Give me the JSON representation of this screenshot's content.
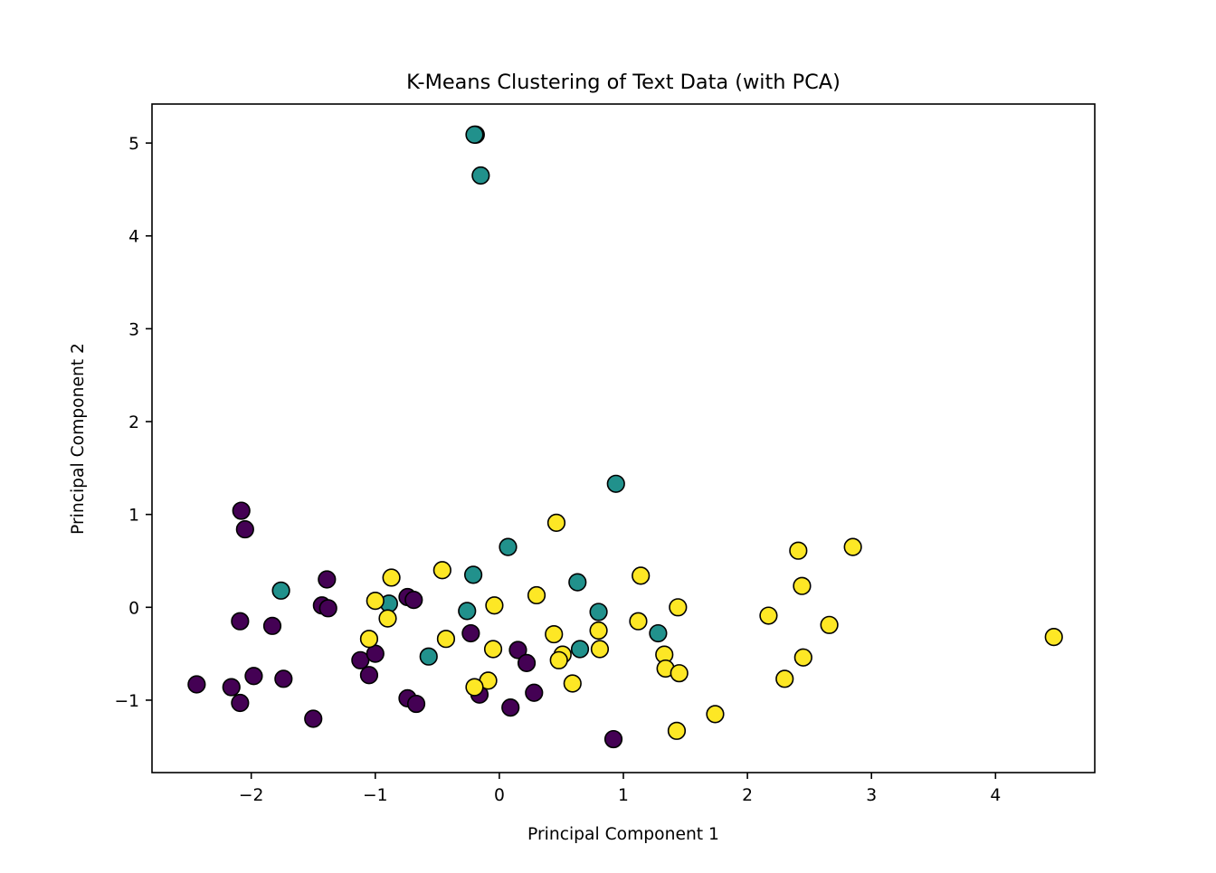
{
  "chart_data": {
    "type": "scatter",
    "title": "K-Means Clustering of Text Data (with PCA)",
    "xlabel": "Principal Component 1",
    "ylabel": "Principal Component 2",
    "xlim": [
      -2.8,
      4.8
    ],
    "ylim": [
      -1.78,
      5.42
    ],
    "xticks": [
      {
        "value": -2,
        "label": "−2"
      },
      {
        "value": -1,
        "label": "−1"
      },
      {
        "value": 0,
        "label": "0"
      },
      {
        "value": 1,
        "label": "1"
      },
      {
        "value": 2,
        "label": "2"
      },
      {
        "value": 3,
        "label": "3"
      },
      {
        "value": 4,
        "label": "4"
      }
    ],
    "yticks": [
      {
        "value": -1,
        "label": "−1"
      },
      {
        "value": 0,
        "label": "0"
      },
      {
        "value": 1,
        "label": "1"
      },
      {
        "value": 2,
        "label": "2"
      },
      {
        "value": 3,
        "label": "3"
      },
      {
        "value": 4,
        "label": "4"
      },
      {
        "value": 5,
        "label": "5"
      }
    ],
    "grid": false,
    "marker_edge_color": "#000000",
    "series": [
      {
        "color": "#440154",
        "points": [
          [
            -2.08,
            1.04
          ],
          [
            -2.05,
            0.84
          ],
          [
            -2.09,
            -0.15
          ],
          [
            -1.83,
            -0.2
          ],
          [
            -1.39,
            0.3
          ],
          [
            -1.43,
            0.02
          ],
          [
            -1.38,
            -0.01
          ],
          [
            -2.44,
            -0.83
          ],
          [
            -2.16,
            -0.86
          ],
          [
            -1.98,
            -0.74
          ],
          [
            -1.74,
            -0.77
          ],
          [
            -2.09,
            -1.03
          ],
          [
            -1.5,
            -1.2
          ],
          [
            -1.12,
            -0.57
          ],
          [
            -1.0,
            -0.5
          ],
          [
            -1.05,
            -0.73
          ],
          [
            -0.74,
            0.11
          ],
          [
            -0.69,
            0.08
          ],
          [
            -0.74,
            -0.98
          ],
          [
            -0.67,
            -1.04
          ],
          [
            -0.23,
            -0.28
          ],
          [
            0.15,
            -0.46
          ],
          [
            0.22,
            -0.6
          ],
          [
            -0.16,
            -0.94
          ],
          [
            0.28,
            -0.92
          ],
          [
            0.09,
            -1.08
          ],
          [
            0.92,
            -1.42
          ]
        ]
      },
      {
        "color": "#21918c",
        "points": [
          [
            -0.19,
            5.09
          ],
          [
            -0.2,
            5.09
          ],
          [
            -0.15,
            4.65
          ],
          [
            0.94,
            1.33
          ],
          [
            0.07,
            0.65
          ],
          [
            -1.76,
            0.18
          ],
          [
            -0.89,
            0.04
          ],
          [
            -0.21,
            0.35
          ],
          [
            -0.26,
            -0.04
          ],
          [
            -0.57,
            -0.53
          ],
          [
            0.63,
            0.27
          ],
          [
            0.8,
            -0.05
          ],
          [
            0.65,
            -0.45
          ],
          [
            1.28,
            -0.28
          ]
        ]
      },
      {
        "color": "#fde725",
        "points": [
          [
            0.46,
            0.91
          ],
          [
            1.14,
            0.34
          ],
          [
            0.3,
            0.13
          ],
          [
            -0.46,
            0.4
          ],
          [
            -0.87,
            0.32
          ],
          [
            -1.0,
            0.07
          ],
          [
            -0.9,
            -0.12
          ],
          [
            -1.05,
            -0.34
          ],
          [
            -0.43,
            -0.34
          ],
          [
            -0.04,
            0.02
          ],
          [
            -0.05,
            -0.45
          ],
          [
            -0.09,
            -0.79
          ],
          [
            -0.2,
            -0.86
          ],
          [
            0.44,
            -0.29
          ],
          [
            0.51,
            -0.51
          ],
          [
            0.48,
            -0.57
          ],
          [
            0.59,
            -0.82
          ],
          [
            0.8,
            -0.25
          ],
          [
            0.81,
            -0.45
          ],
          [
            1.12,
            -0.15
          ],
          [
            1.44,
            0.0
          ],
          [
            1.33,
            -0.51
          ],
          [
            1.34,
            -0.66
          ],
          [
            1.45,
            -0.71
          ],
          [
            1.74,
            -1.15
          ],
          [
            1.43,
            -1.33
          ],
          [
            2.17,
            -0.09
          ],
          [
            2.41,
            0.61
          ],
          [
            2.44,
            0.23
          ],
          [
            2.66,
            -0.19
          ],
          [
            2.85,
            0.65
          ],
          [
            2.3,
            -0.77
          ],
          [
            2.45,
            -0.54
          ],
          [
            4.47,
            -0.32
          ]
        ]
      }
    ]
  }
}
